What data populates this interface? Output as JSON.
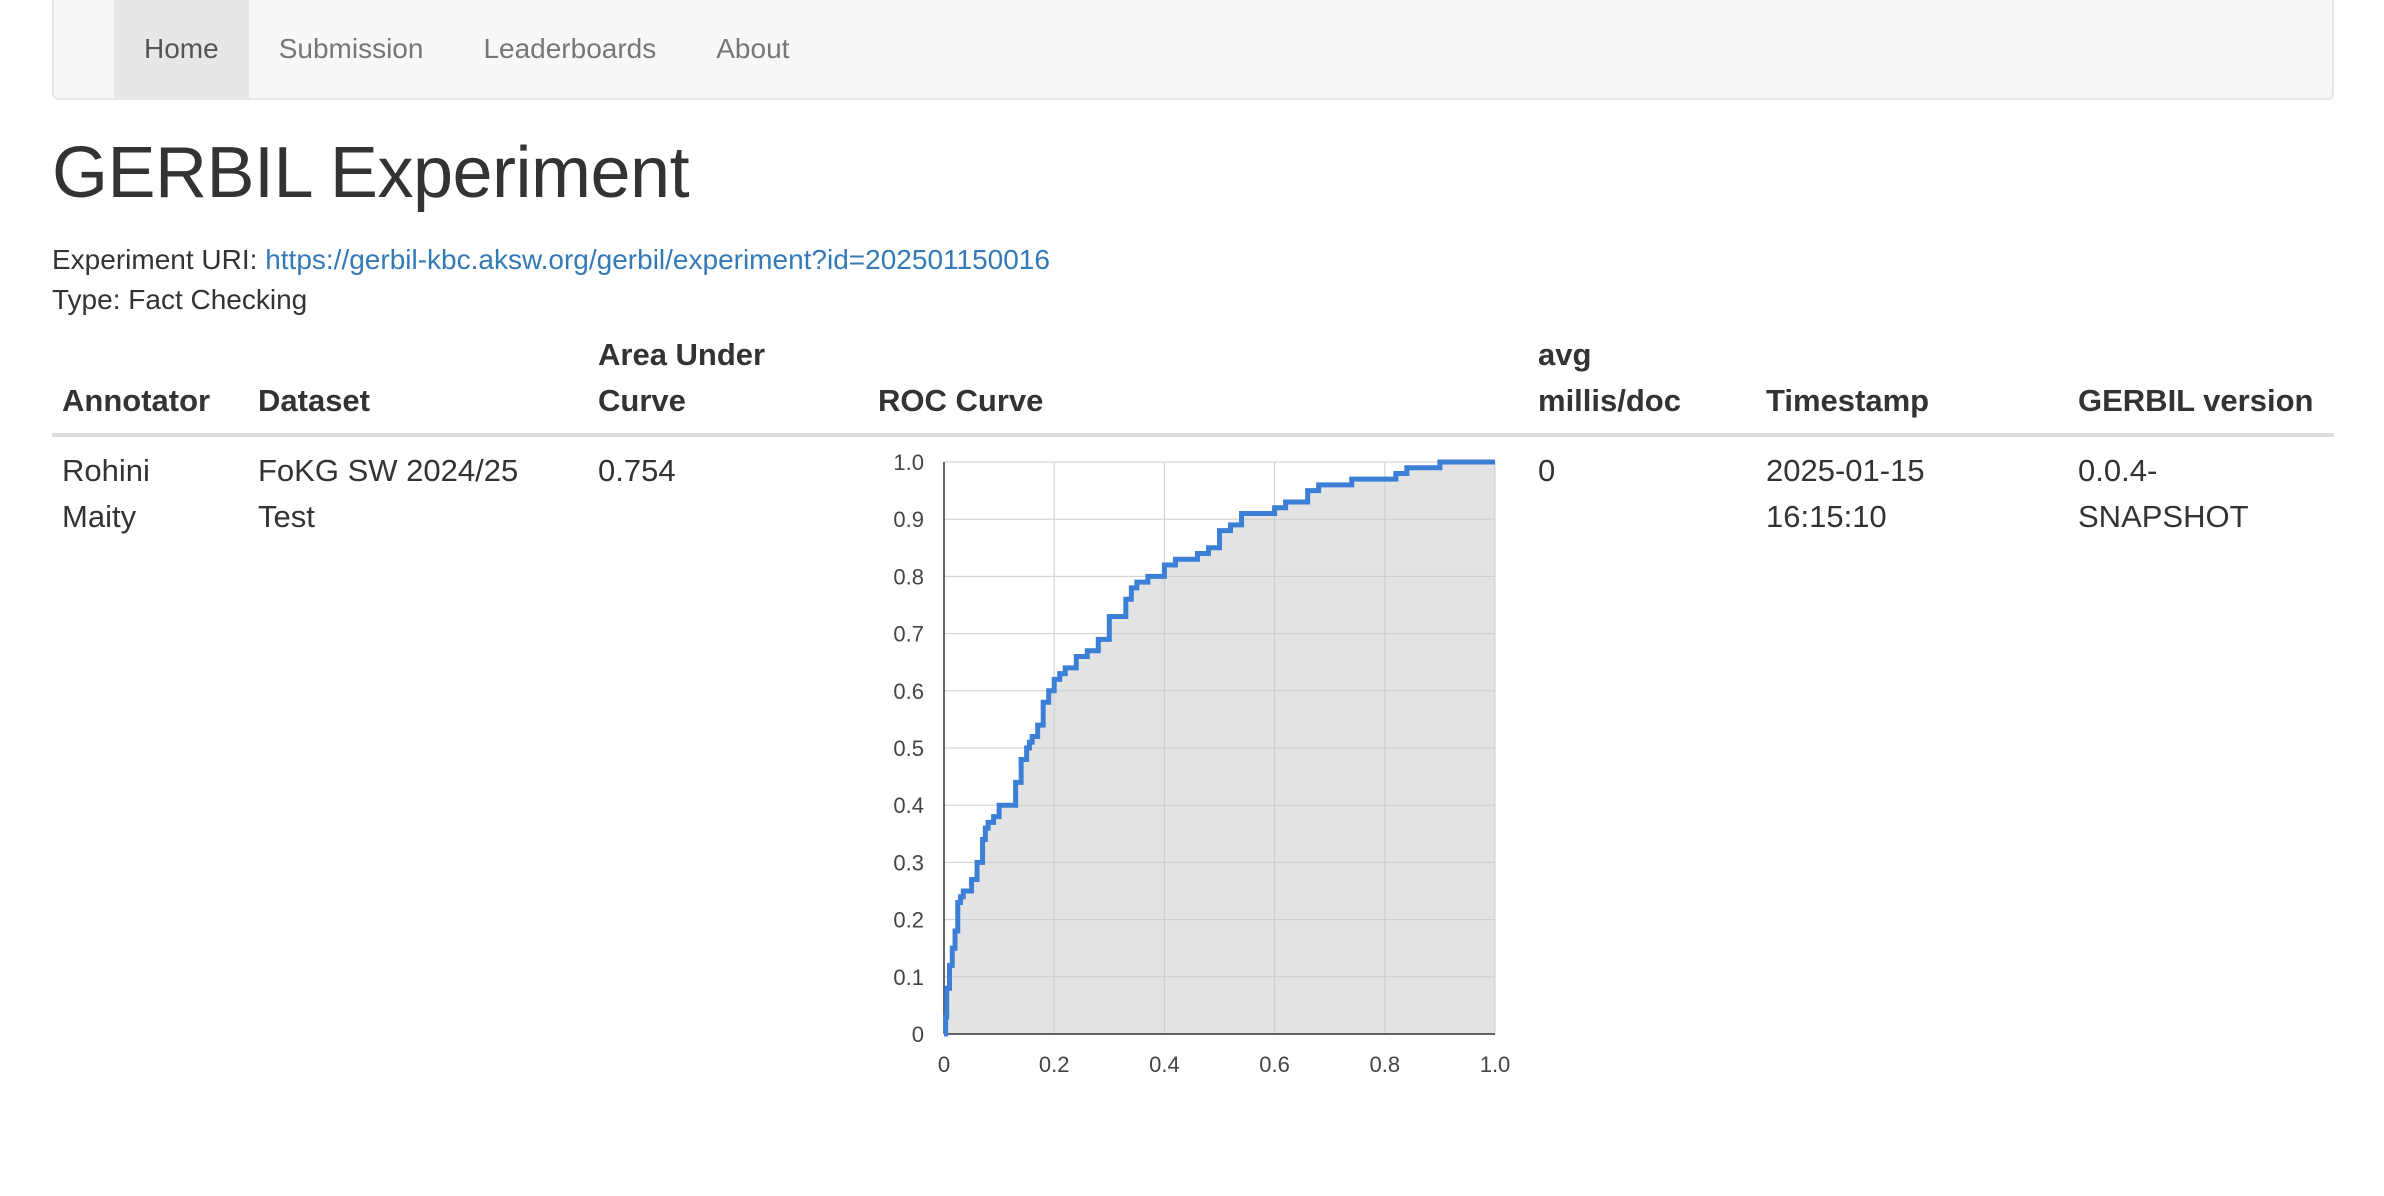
{
  "nav": {
    "items": [
      {
        "label": "Home",
        "active": true
      },
      {
        "label": "Submission",
        "active": false
      },
      {
        "label": "Leaderboards",
        "active": false
      },
      {
        "label": "About",
        "active": false
      }
    ]
  },
  "page": {
    "title": "GERBIL Experiment",
    "uri_label": "Experiment URI:",
    "uri": "https://gerbil-kbc.aksw.org/gerbil/experiment?id=202501150016",
    "type_label": "Type:",
    "type_value": "Fact Checking"
  },
  "table": {
    "headers": {
      "annotator": "Annotator",
      "dataset": "Dataset",
      "auc_line1": "Area Under",
      "auc_line2": "Curve",
      "roc": "ROC Curve",
      "avg_line1": "avg",
      "avg_line2": "millis/doc",
      "timestamp": "Timestamp",
      "version": "GERBIL version"
    },
    "row": {
      "annotator_line1": "Rohini",
      "annotator_line2": "Maity",
      "dataset_line1": "FoKG SW 2024/25",
      "dataset_line2": "Test",
      "auc": "0.754",
      "avg_millis": "0",
      "timestamp_line1": "2025-01-15",
      "timestamp_line2": "16:15:10",
      "version_line1": "0.0.4-",
      "version_line2": "SNAPSHOT"
    }
  },
  "chart_data": {
    "type": "area",
    "series": [
      {
        "x": [
          0,
          0.003,
          0.005,
          0.01,
          0.015,
          0.02,
          0.025,
          0.03,
          0.035,
          0.04,
          0.05,
          0.06,
          0.07,
          0.075,
          0.08,
          0.085,
          0.09,
          0.1,
          0.11,
          0.13,
          0.14,
          0.15,
          0.155,
          0.16,
          0.17,
          0.18,
          0.19,
          0.2,
          0.21,
          0.22,
          0.24,
          0.26,
          0.28,
          0.3,
          0.33,
          0.34,
          0.35,
          0.36,
          0.37,
          0.38,
          0.4,
          0.42,
          0.44,
          0.46,
          0.48,
          0.5,
          0.52,
          0.54,
          0.56,
          0.6,
          0.62,
          0.66,
          0.68,
          0.7,
          0.74,
          0.8,
          0.82,
          0.84,
          0.88,
          0.9,
          1.0
        ],
        "y": [
          0,
          0.03,
          0.08,
          0.12,
          0.15,
          0.18,
          0.23,
          0.24,
          0.25,
          0.25,
          0.27,
          0.3,
          0.34,
          0.36,
          0.37,
          0.37,
          0.38,
          0.4,
          0.4,
          0.44,
          0.48,
          0.5,
          0.51,
          0.52,
          0.54,
          0.58,
          0.6,
          0.62,
          0.63,
          0.64,
          0.66,
          0.67,
          0.69,
          0.73,
          0.76,
          0.78,
          0.79,
          0.79,
          0.8,
          0.8,
          0.82,
          0.83,
          0.83,
          0.84,
          0.85,
          0.88,
          0.89,
          0.91,
          0.91,
          0.92,
          0.93,
          0.95,
          0.96,
          0.96,
          0.97,
          0.97,
          0.98,
          0.99,
          0.99,
          1.0,
          1.0
        ]
      }
    ],
    "xlim": [
      0,
      1
    ],
    "ylim": [
      0,
      1
    ],
    "xticks": [
      "0",
      "0.2",
      "0.4",
      "0.6",
      "0.8",
      "1.0"
    ],
    "yticks": [
      "0",
      "0.1",
      "0.2",
      "0.3",
      "0.4",
      "0.5",
      "0.6",
      "0.7",
      "0.8",
      "0.9",
      "1.0"
    ],
    "grid": true,
    "line_color": "#3c7fd6",
    "fill_color": "#e3e3e3"
  }
}
